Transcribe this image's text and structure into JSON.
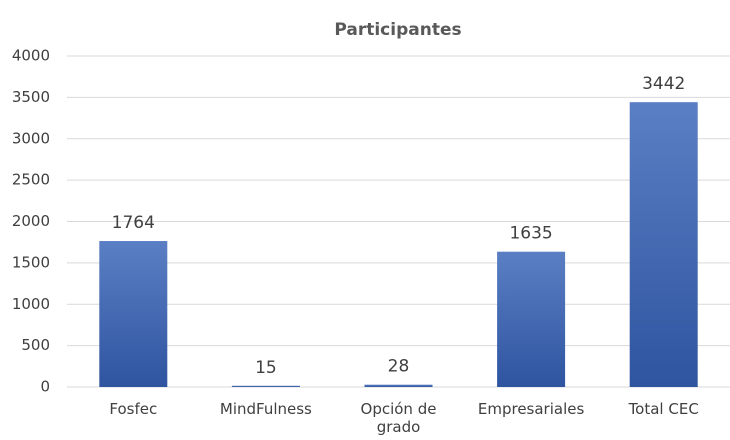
{
  "chart_data": {
    "type": "bar",
    "title": "Participantes",
    "categories": [
      "Fosfec",
      "MindFulness",
      "Opción de grado",
      "Empresariales",
      "Total CEC"
    ],
    "values": [
      1764,
      15,
      28,
      1635,
      3442
    ],
    "color": "#3f62ad",
    "ylim": [
      0,
      4000
    ],
    "yticks": [
      0,
      500,
      1000,
      1500,
      2000,
      2500,
      3000,
      3500,
      4000
    ],
    "grid": true
  }
}
